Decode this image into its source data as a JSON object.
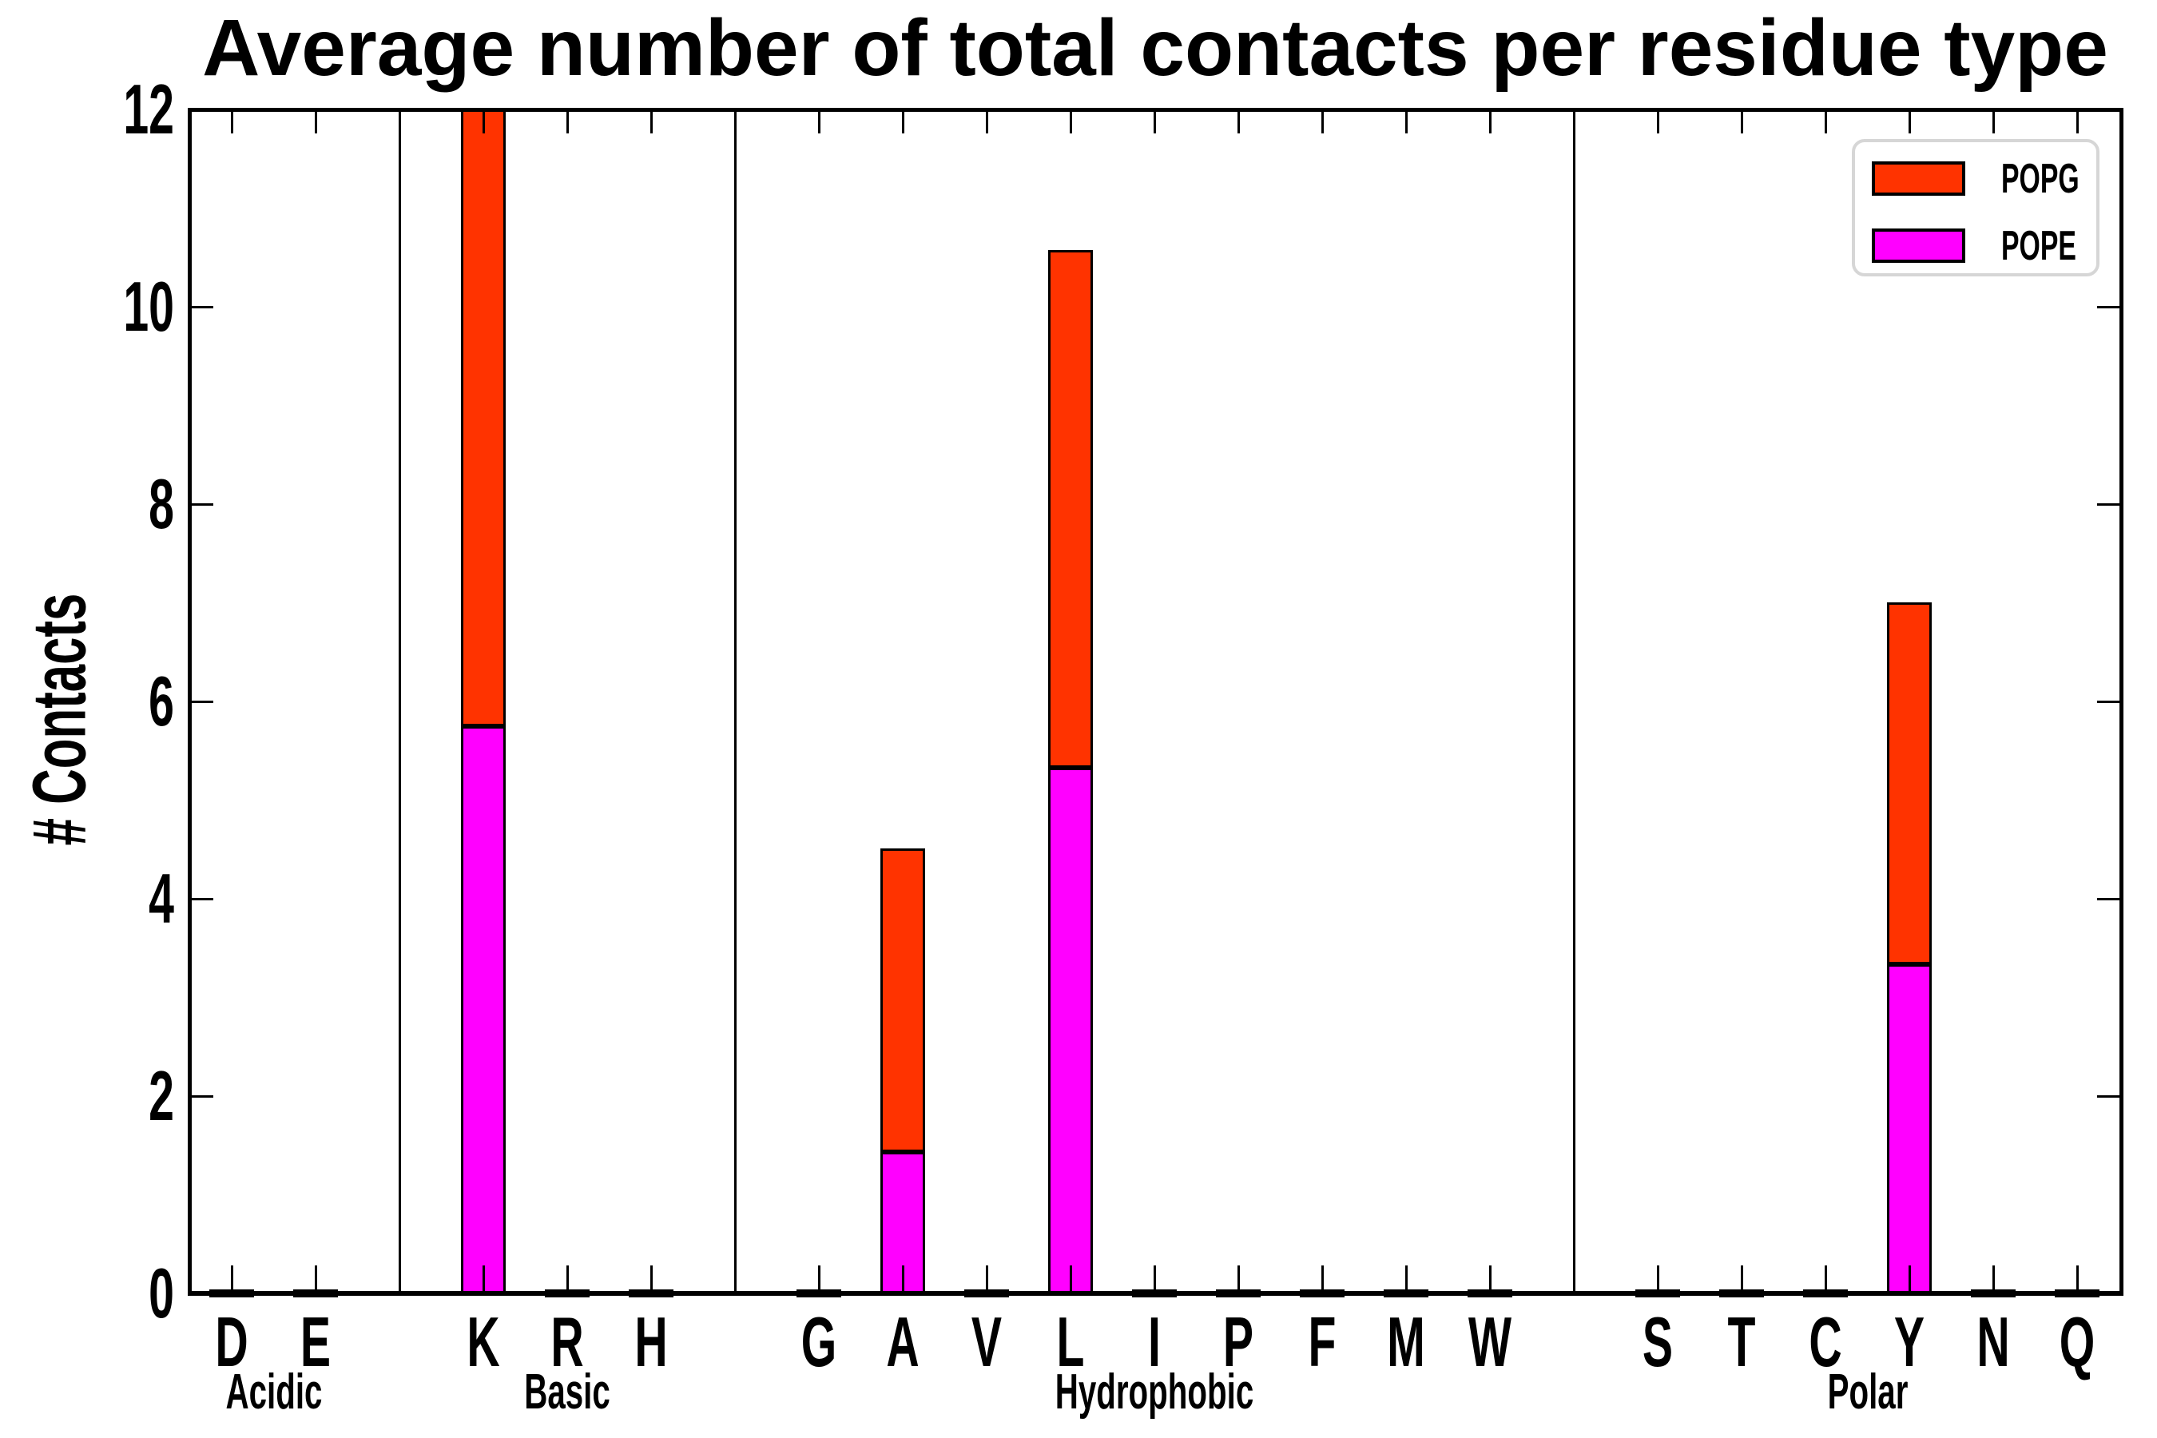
{
  "title": "Average number of total contacts per residue type",
  "ylabel": "# Contacts",
  "legend": {
    "position": "upper right",
    "items": [
      {
        "label": "POPG",
        "color": "#ff3300"
      },
      {
        "label": "POPE",
        "color": "#ff00ff"
      }
    ]
  },
  "colors": {
    "popg": "#ff3300",
    "pope": "#ff00ff",
    "bar_edge": "#000000",
    "axis": "#000000",
    "legend_border": "#d6d6d6",
    "background": "#ffffff"
  },
  "chart_data": {
    "type": "bar",
    "stacked": true,
    "title": "Average number of total contacts per residue type",
    "xlabel": "",
    "ylabel": "# Contacts",
    "ylim": [
      0,
      12
    ],
    "yticks": [
      0,
      2,
      4,
      6,
      8,
      10,
      12
    ],
    "grid": false,
    "legend_position": "upper right",
    "groups": [
      {
        "label": "Acidic",
        "residues": [
          "D",
          "E"
        ]
      },
      {
        "label": "Basic",
        "residues": [
          "K",
          "R",
          "H"
        ]
      },
      {
        "label": "Hydrophobic",
        "residues": [
          "G",
          "A",
          "V",
          "L",
          "I",
          "P",
          "F",
          "M",
          "W"
        ]
      },
      {
        "label": "Polar",
        "residues": [
          "S",
          "T",
          "C",
          "Y",
          "N",
          "Q"
        ]
      }
    ],
    "categories": [
      "D",
      "E",
      "K",
      "R",
      "H",
      "G",
      "A",
      "V",
      "L",
      "I",
      "P",
      "F",
      "M",
      "W",
      "S",
      "T",
      "C",
      "Y",
      "N",
      "Q"
    ],
    "series": [
      {
        "name": "POPE",
        "color": "#ff00ff",
        "stack_layer": "bottom",
        "values": [
          0,
          0,
          5.75,
          0,
          0,
          0,
          1.43,
          0,
          5.33,
          0,
          0,
          0,
          0,
          0,
          0,
          0,
          0,
          3.34,
          0,
          0
        ]
      },
      {
        "name": "POPG",
        "color": "#ff3300",
        "stack_layer": "top",
        "values": [
          0,
          0,
          6.25,
          0,
          0,
          0,
          3.08,
          0,
          5.25,
          0,
          0,
          0,
          0,
          0,
          0,
          0,
          0,
          3.67,
          0,
          0
        ]
      }
    ],
    "stacked_totals": [
      0,
      0,
      12.0,
      0,
      0,
      0,
      4.51,
      0,
      10.58,
      0,
      0,
      0,
      0,
      0,
      0,
      0,
      0,
      7.01,
      0,
      0
    ]
  }
}
